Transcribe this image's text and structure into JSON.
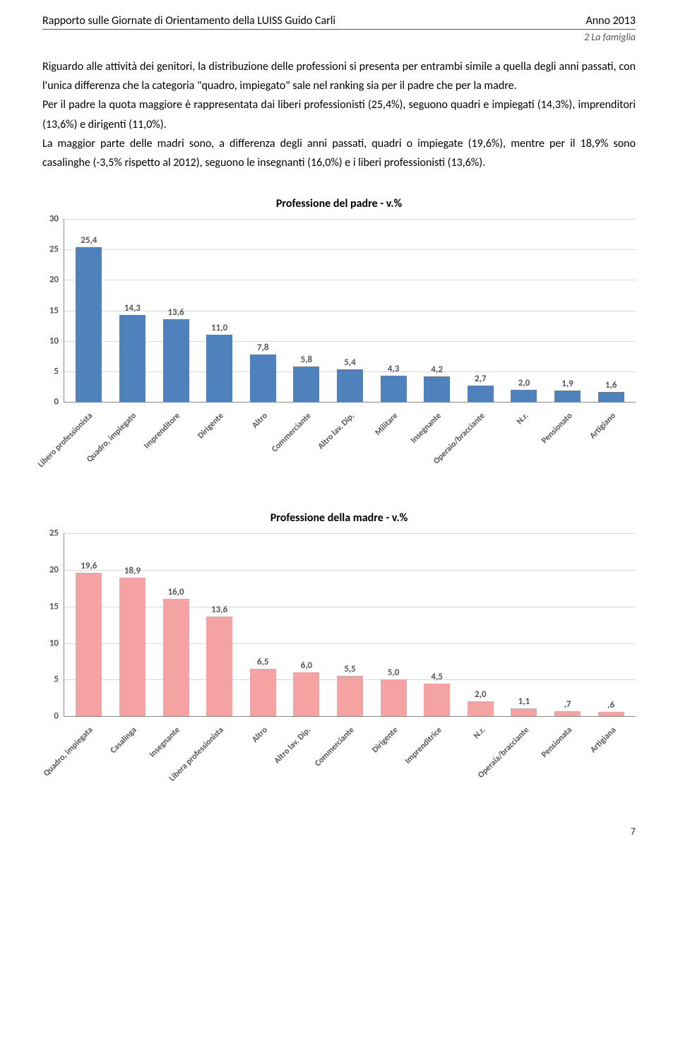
{
  "header": {
    "left": "Rapporto sulle Giornate di Orientamento della LUISS Guido Carli",
    "right": "Anno 2013",
    "subtitle": "2 La famiglia"
  },
  "paragraphs": [
    "Riguardo alle attività dei genitori, la distribuzione delle professioni si presenta per entrambi simile a quella degli anni passati, con l'unica differenza che la categoria \"quadro, impiegato\" sale nel ranking sia per il padre che per la madre.",
    "Per il padre la quota maggiore è rappresentata dai liberi professionisti (25,4%), seguono quadri e impiegati (14,3%), imprenditori (13,6%) e dirigenti (11,0%).",
    "La maggior parte delle madri sono, a differenza degli anni passati, quadri o impiegate (19,6%), mentre per il 18,9% sono casalinghe (-3,5% rispetto al 2012), seguono le insegnanti (16,0%) e i liberi professionisti (13,6%)."
  ],
  "chart_padre": {
    "title": "Professione del padre - v.%",
    "type": "bar",
    "categories": [
      "Libero professionista",
      "Quadro, impiegato",
      "Imprenditore",
      "Dirigente",
      "Altro",
      "Commerciante",
      "Altro lav. Dip.",
      "Militare",
      "Insegnante",
      "Operaio/bracciante",
      "N.r.",
      "Pensionato",
      "Artigiano"
    ],
    "values": [
      25.4,
      14.3,
      13.6,
      11.0,
      7.8,
      5.8,
      5.4,
      4.3,
      4.2,
      2.7,
      2.0,
      1.9,
      1.6
    ],
    "value_labels": [
      "25,4",
      "14,3",
      "13,6",
      "11,0",
      "7,8",
      "5,8",
      "5,4",
      "4,3",
      "4,2",
      "2,7",
      "2,0",
      "1,9",
      "1,6"
    ],
    "ymax": 30,
    "ytick_step": 5,
    "yticks": [
      0,
      5,
      10,
      15,
      20,
      25,
      30
    ],
    "bar_color": "#4f81bd",
    "grid_color": "#d9d9d9"
  },
  "chart_madre": {
    "title": "Professione della madre - v.%",
    "type": "bar",
    "categories": [
      "Quadro, impiegata",
      "Casalinga",
      "Insegnante",
      "Libera professionista",
      "Altro",
      "Altro lav. Dip.",
      "Commerciante",
      "Dirigente",
      "Imprenditrice",
      "N.r.",
      "Operaia/bracciante",
      "Pensionata",
      "Artigiana"
    ],
    "values": [
      19.6,
      18.9,
      16.0,
      13.6,
      6.5,
      6.0,
      5.5,
      5.0,
      4.5,
      2.0,
      1.1,
      0.7,
      0.6
    ],
    "value_labels": [
      "19,6",
      "18,9",
      "16,0",
      "13,6",
      "6,5",
      "6,0",
      "5,5",
      "5,0",
      "4,5",
      "2,0",
      "1,1",
      ",7",
      ",6"
    ],
    "ymax": 25,
    "ytick_step": 5,
    "yticks": [
      0,
      5,
      10,
      15,
      20,
      25
    ],
    "bar_color": "#f4a2a2",
    "grid_color": "#d9d9d9"
  },
  "page_number": "7"
}
